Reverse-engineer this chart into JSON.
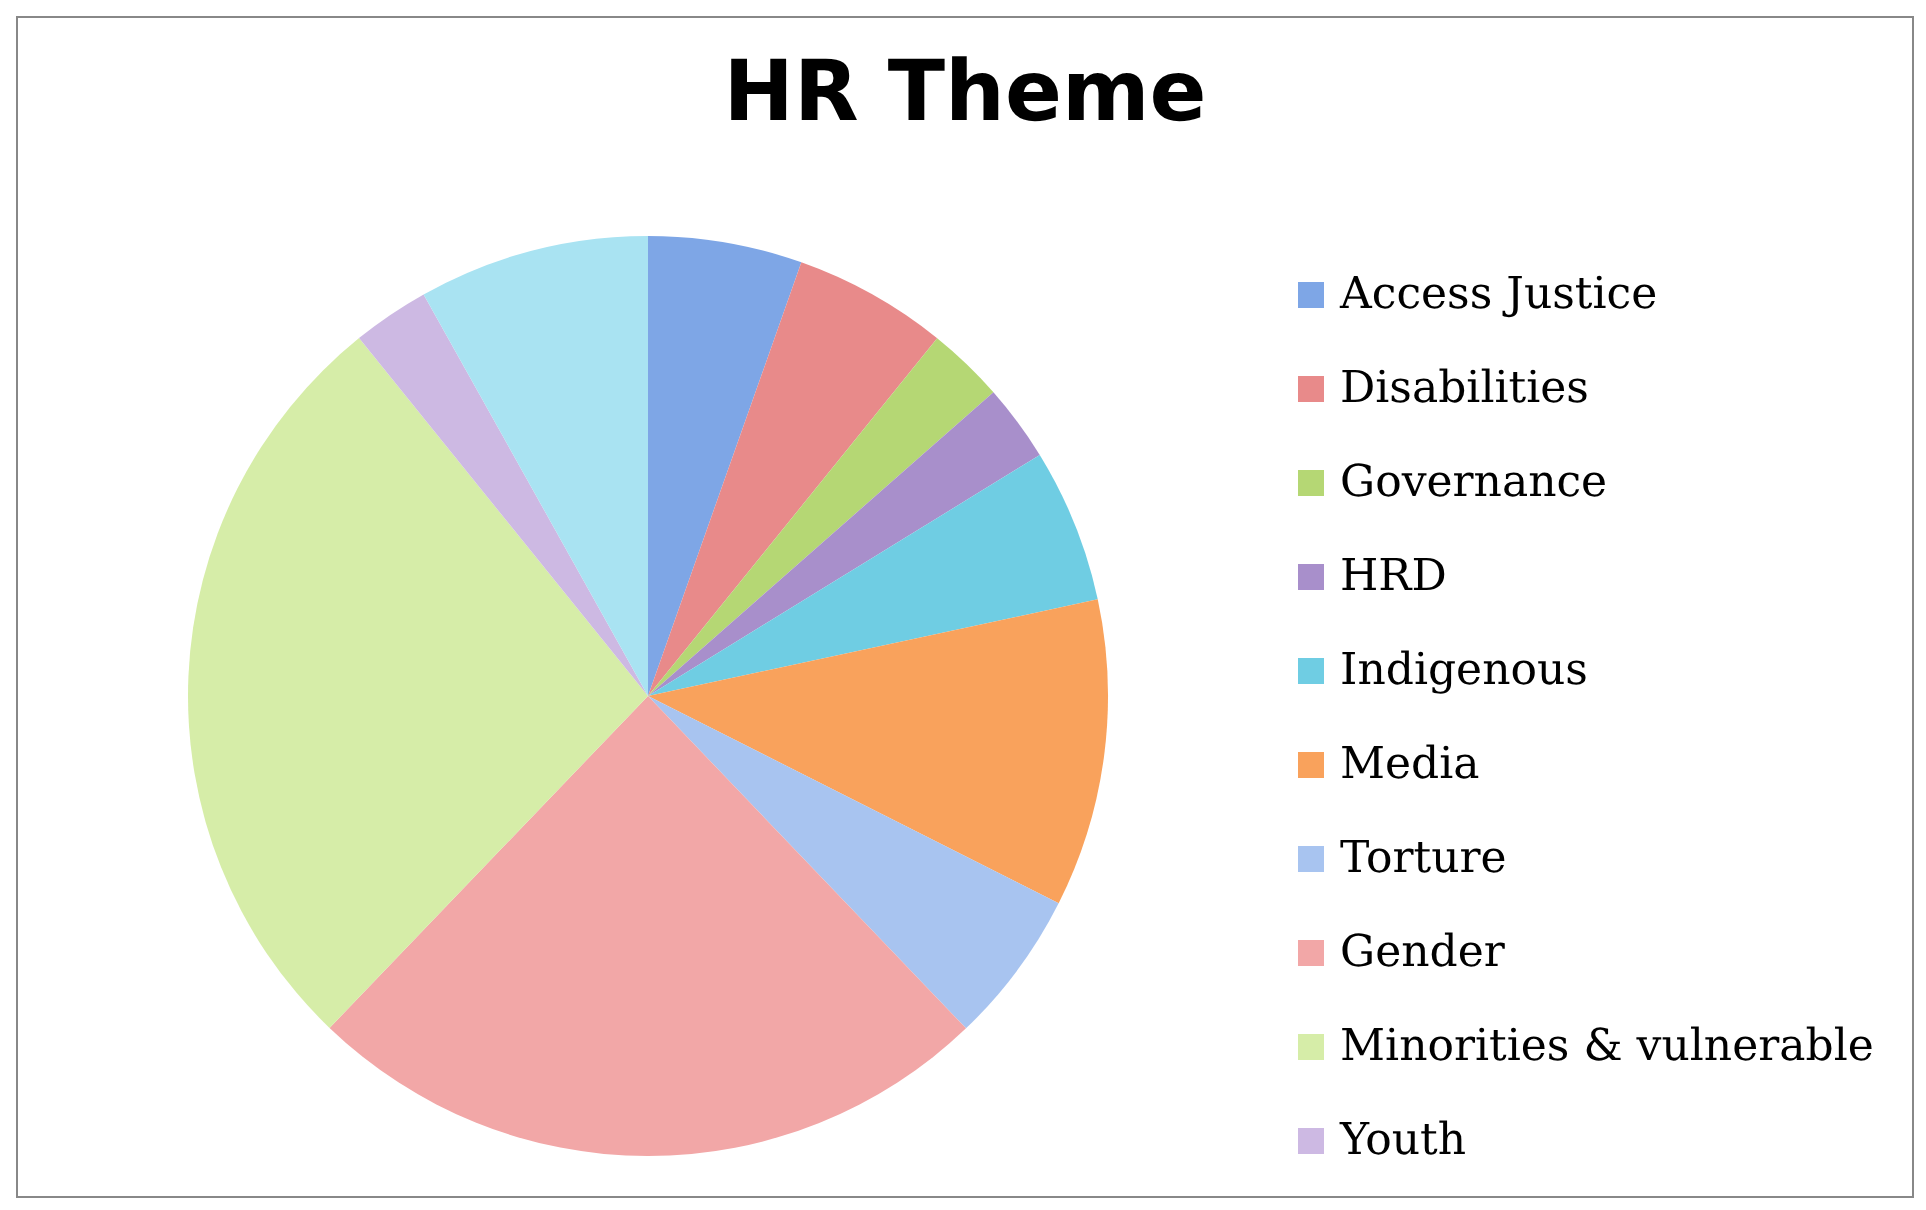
{
  "chart_data": {
    "type": "pie",
    "title": "HR Theme",
    "categories": [
      "Access Justice",
      "Disabilities",
      "Governance",
      "HRD",
      "Indigenous",
      "Media",
      "Torture",
      "Gender",
      "Minorities & vulnerable",
      "Youth",
      null
    ],
    "values": [
      5.41,
      5.41,
      2.7,
      2.7,
      5.41,
      10.81,
      5.41,
      24.32,
      27.02,
      2.7,
      8.11
    ],
    "colors": [
      "#7ea6e6",
      "#e88a8a",
      "#b5d774",
      "#a88fcb",
      "#6fcde3",
      "#f9a25c",
      "#a8c4f0",
      "#f2a7a7",
      "#d6eda8",
      "#cdb9e3",
      "#a9e3f2"
    ],
    "legend": "right"
  }
}
